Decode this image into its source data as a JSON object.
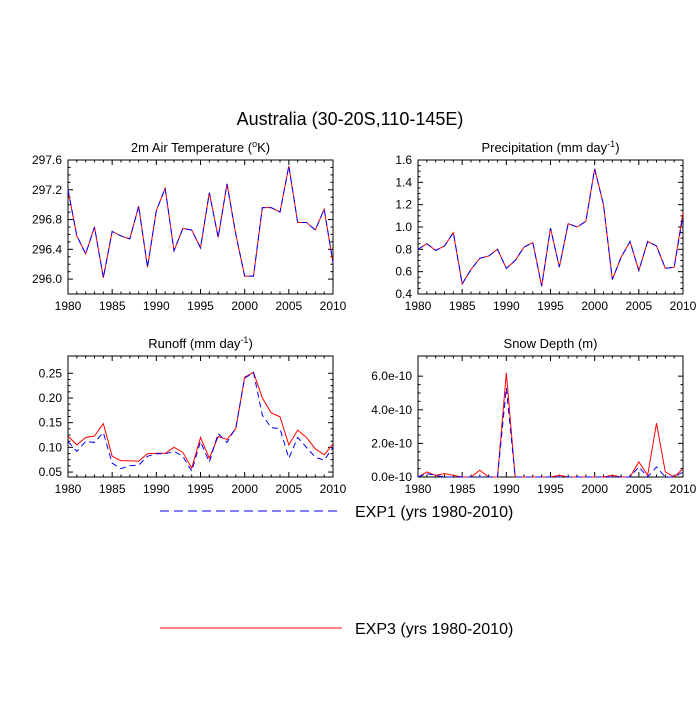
{
  "title": "Australia (30-20S,110-145E)",
  "colors": {
    "exp1": "#0000ff",
    "exp3": "#ff0000",
    "axis": "#000000"
  },
  "legend": [
    {
      "name": "EXP1 (yrs 1980-2010)",
      "style": "dashed",
      "color": "#0000ff"
    },
    {
      "name": "EXP3 (yrs 1980-2010)",
      "style": "solid",
      "color": "#ff0000"
    }
  ],
  "chart_data": [
    {
      "type": "line",
      "title": "2m Air Temperature (",
      "title_sup": "o",
      "title_post": "K)",
      "xlim": [
        1980,
        2010
      ],
      "ylim": [
        295.8,
        297.6
      ],
      "xticks": [
        1980,
        1985,
        1990,
        1995,
        2000,
        2005,
        2010
      ],
      "xtick_labels": [
        "1980",
        "1985",
        "1990",
        "1995",
        "2000",
        "2005",
        "2010"
      ],
      "yticks": [
        296.0,
        296.4,
        296.8,
        297.2,
        297.6
      ],
      "ytick_labels": [
        "296.0",
        "296.4",
        "296.8",
        "297.2",
        "297.6"
      ],
      "x": [
        1980,
        1981,
        1982,
        1983,
        1984,
        1985,
        1986,
        1987,
        1988,
        1989,
        1990,
        1991,
        1992,
        1993,
        1994,
        1995,
        1996,
        1997,
        1998,
        1999,
        2000,
        2001,
        2002,
        2003,
        2004,
        2005,
        2006,
        2007,
        2008,
        2009,
        2010
      ],
      "series": [
        {
          "name": "EXP1 (yrs 1980-2010)",
          "values": [
            297.2,
            296.58,
            296.34,
            296.7,
            296.02,
            296.64,
            296.58,
            296.54,
            296.98,
            296.16,
            296.92,
            297.22,
            296.38,
            296.68,
            296.66,
            296.42,
            297.16,
            296.56,
            297.28,
            296.6,
            296.04,
            296.04,
            296.96,
            296.96,
            296.9,
            297.52,
            296.76,
            296.76,
            296.66,
            296.94,
            296.22
          ]
        },
        {
          "name": "EXP3 (yrs 1980-2010)",
          "values": [
            297.2,
            296.58,
            296.34,
            296.7,
            296.02,
            296.64,
            296.58,
            296.54,
            296.98,
            296.16,
            296.92,
            297.22,
            296.38,
            296.68,
            296.66,
            296.42,
            297.16,
            296.56,
            297.28,
            296.6,
            296.04,
            296.04,
            296.96,
            296.96,
            296.9,
            297.52,
            296.76,
            296.76,
            296.66,
            296.94,
            296.22
          ]
        }
      ]
    },
    {
      "type": "line",
      "title": "Precipitation (mm day",
      "title_sup": "-1",
      "title_post": ")",
      "xlim": [
        1980,
        2010
      ],
      "ylim": [
        0.4,
        1.6
      ],
      "xticks": [
        1980,
        1985,
        1990,
        1995,
        2000,
        2005,
        2010
      ],
      "xtick_labels": [
        "1980",
        "1985",
        "1990",
        "1995",
        "2000",
        "2005",
        "2010"
      ],
      "yticks": [
        0.4,
        0.6,
        0.8,
        1.0,
        1.2,
        1.4,
        1.6
      ],
      "ytick_labels": [
        "0.4",
        "0.6",
        "0.8",
        "1.0",
        "1.2",
        "1.4",
        "1.6"
      ],
      "x": [
        1980,
        1981,
        1982,
        1983,
        1984,
        1985,
        1986,
        1987,
        1988,
        1989,
        1990,
        1991,
        1992,
        1993,
        1994,
        1995,
        1996,
        1997,
        1998,
        1999,
        2000,
        2001,
        2002,
        2003,
        2004,
        2005,
        2006,
        2007,
        2008,
        2009,
        2010
      ],
      "series": [
        {
          "name": "EXP1 (yrs 1980-2010)",
          "values": [
            0.8,
            0.85,
            0.79,
            0.83,
            0.95,
            0.49,
            0.62,
            0.72,
            0.74,
            0.8,
            0.63,
            0.7,
            0.82,
            0.86,
            0.47,
            0.99,
            0.64,
            1.03,
            1.0,
            1.05,
            1.52,
            1.2,
            0.53,
            0.73,
            0.87,
            0.61,
            0.87,
            0.83,
            0.63,
            0.64,
            1.1
          ]
        },
        {
          "name": "EXP3 (yrs 1980-2010)",
          "values": [
            0.8,
            0.85,
            0.79,
            0.83,
            0.95,
            0.49,
            0.62,
            0.72,
            0.74,
            0.8,
            0.63,
            0.7,
            0.82,
            0.86,
            0.47,
            0.99,
            0.64,
            1.03,
            1.0,
            1.05,
            1.52,
            1.2,
            0.53,
            0.73,
            0.87,
            0.61,
            0.87,
            0.83,
            0.63,
            0.64,
            1.13
          ]
        }
      ]
    },
    {
      "type": "line",
      "title": "Runoff (mm day",
      "title_sup": "-1",
      "title_post": ")",
      "xlim": [
        1980,
        2010
      ],
      "ylim": [
        0.04,
        0.285
      ],
      "xticks": [
        1980,
        1985,
        1990,
        1995,
        2000,
        2005,
        2010
      ],
      "xtick_labels": [
        "1980",
        "1985",
        "1990",
        "1995",
        "2000",
        "2005",
        "2010"
      ],
      "yticks": [
        0.05,
        0.1,
        0.15,
        0.2,
        0.25
      ],
      "ytick_labels": [
        "0.05",
        "0.10",
        "0.15",
        "0.20",
        "0.25"
      ],
      "x": [
        1980,
        1981,
        1982,
        1983,
        1984,
        1985,
        1986,
        1987,
        1988,
        1989,
        1990,
        1991,
        1992,
        1993,
        1994,
        1995,
        1996,
        1997,
        1998,
        1999,
        2000,
        2001,
        2002,
        2003,
        2004,
        2005,
        2006,
        2007,
        2008,
        2009,
        2010
      ],
      "series": [
        {
          "name": "EXP1 (yrs 1980-2010)",
          "values": [
            0.112,
            0.092,
            0.112,
            0.11,
            0.13,
            0.068,
            0.057,
            0.063,
            0.064,
            0.082,
            0.087,
            0.087,
            0.092,
            0.082,
            0.052,
            0.112,
            0.07,
            0.128,
            0.11,
            0.14,
            0.24,
            0.252,
            0.165,
            0.14,
            0.138,
            0.078,
            0.12,
            0.1,
            0.08,
            0.074,
            0.1
          ]
        },
        {
          "name": "EXP3 (yrs 1980-2010)",
          "values": [
            0.123,
            0.105,
            0.12,
            0.123,
            0.148,
            0.082,
            0.073,
            0.073,
            0.072,
            0.087,
            0.088,
            0.088,
            0.1,
            0.09,
            0.058,
            0.12,
            0.078,
            0.122,
            0.116,
            0.138,
            0.242,
            0.252,
            0.2,
            0.17,
            0.162,
            0.105,
            0.135,
            0.12,
            0.097,
            0.085,
            0.107
          ]
        }
      ]
    },
    {
      "type": "line",
      "title": "Snow Depth (m)",
      "title_sup": "",
      "title_post": "",
      "xlim": [
        1980,
        2010
      ],
      "ylim": [
        0,
        7.2e-10
      ],
      "xticks": [
        1980,
        1985,
        1990,
        1995,
        2000,
        2005,
        2010
      ],
      "xtick_labels": [
        "1980",
        "1985",
        "1990",
        "1995",
        "2000",
        "2005",
        "2010"
      ],
      "yticks": [
        0,
        2e-10,
        4e-10,
        6e-10
      ],
      "ytick_labels": [
        "0.0e-10",
        "2.0e-10",
        "4.0e-10",
        "6.0e-10"
      ],
      "x": [
        1980,
        1981,
        1982,
        1983,
        1984,
        1985,
        1986,
        1987,
        1988,
        1989,
        1990,
        1991,
        1992,
        1993,
        1994,
        1995,
        1996,
        1997,
        1998,
        1999,
        2000,
        2001,
        2002,
        2003,
        2004,
        2005,
        2006,
        2007,
        2008,
        2009,
        2010
      ],
      "series": [
        {
          "name": "EXP1 (yrs 1980-2010)",
          "values": [
            0,
            2e-11,
            1e-11,
            0,
            0,
            0,
            0,
            0,
            0,
            0,
            5.3e-10,
            0,
            0,
            0,
            0,
            0,
            0,
            0,
            0,
            0,
            0,
            0,
            0,
            0,
            0,
            6e-11,
            0,
            6e-11,
            0,
            0,
            3e-11
          ]
        },
        {
          "name": "EXP3 (yrs 1980-2010)",
          "values": [
            0,
            3e-11,
            1e-11,
            2e-11,
            1e-11,
            0,
            0,
            4e-11,
            0,
            0,
            6.2e-10,
            0,
            0,
            0,
            0,
            0,
            1e-11,
            0,
            0,
            0,
            0,
            0,
            1e-11,
            0,
            0,
            9e-11,
            1e-11,
            3.2e-10,
            3e-11,
            0,
            5e-11
          ]
        }
      ]
    }
  ]
}
